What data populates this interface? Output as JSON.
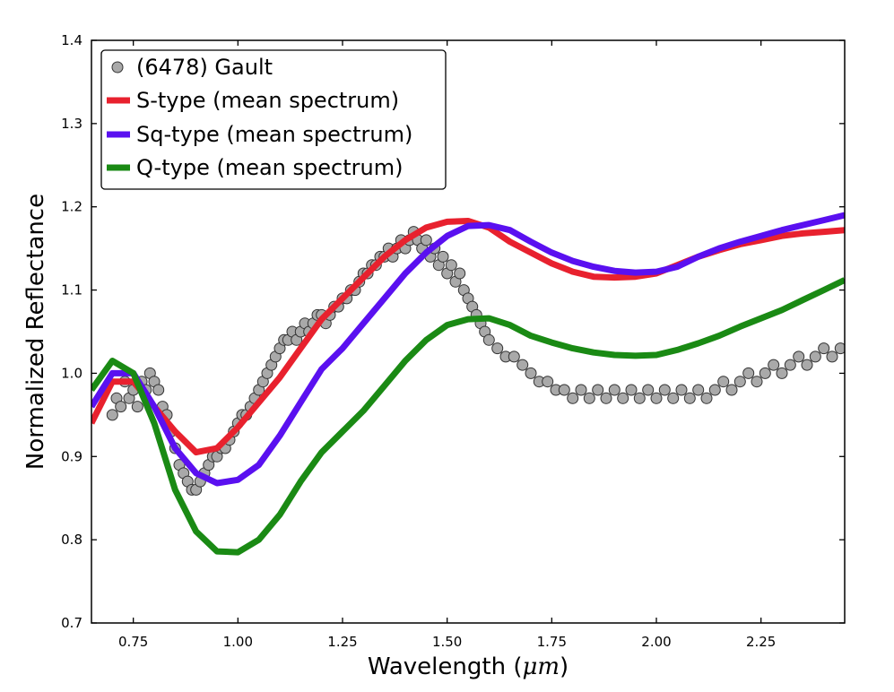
{
  "chart_data": {
    "type": "line",
    "title": "",
    "xlabel_prefix": "Wavelength (",
    "xlabel_unit": "μm",
    "xlabel_suffix": ")",
    "ylabel": "Normalized Reflectance",
    "xlim": [
      0.65,
      2.45
    ],
    "ylim": [
      0.7,
      1.4
    ],
    "x_ticks": [
      0.75,
      1.0,
      1.25,
      1.5,
      1.75,
      2.0,
      2.25
    ],
    "x_tick_labels": [
      "0.75",
      "1.00",
      "1.25",
      "1.50",
      "1.75",
      "2.00",
      "2.25"
    ],
    "y_ticks": [
      0.7,
      0.8,
      0.9,
      1.0,
      1.1,
      1.2,
      1.3,
      1.4
    ],
    "y_tick_labels": [
      "0.7",
      "0.8",
      "0.9",
      "1.0",
      "1.1",
      "1.2",
      "1.3",
      "1.4"
    ],
    "grid": false,
    "legend_position": "top-left",
    "scatter": {
      "name": "(6478) Gault",
      "color": "#a9a9a9",
      "edge_color": "#333333",
      "points": [
        [
          0.7,
          0.95
        ],
        [
          0.71,
          0.97
        ],
        [
          0.72,
          0.96
        ],
        [
          0.73,
          0.99
        ],
        [
          0.74,
          0.97
        ],
        [
          0.75,
          0.98
        ],
        [
          0.76,
          0.96
        ],
        [
          0.77,
          0.99
        ],
        [
          0.78,
          0.98
        ],
        [
          0.79,
          1.0
        ],
        [
          0.8,
          0.99
        ],
        [
          0.81,
          0.98
        ],
        [
          0.82,
          0.96
        ],
        [
          0.83,
          0.95
        ],
        [
          0.84,
          0.93
        ],
        [
          0.85,
          0.91
        ],
        [
          0.86,
          0.89
        ],
        [
          0.87,
          0.88
        ],
        [
          0.88,
          0.87
        ],
        [
          0.89,
          0.86
        ],
        [
          0.9,
          0.86
        ],
        [
          0.91,
          0.87
        ],
        [
          0.92,
          0.88
        ],
        [
          0.93,
          0.89
        ],
        [
          0.94,
          0.9
        ],
        [
          0.95,
          0.9
        ],
        [
          0.96,
          0.91
        ],
        [
          0.97,
          0.91
        ],
        [
          0.98,
          0.92
        ],
        [
          0.99,
          0.93
        ],
        [
          1.0,
          0.94
        ],
        [
          1.01,
          0.95
        ],
        [
          1.02,
          0.95
        ],
        [
          1.03,
          0.96
        ],
        [
          1.04,
          0.97
        ],
        [
          1.05,
          0.98
        ],
        [
          1.06,
          0.99
        ],
        [
          1.07,
          1.0
        ],
        [
          1.08,
          1.01
        ],
        [
          1.09,
          1.02
        ],
        [
          1.1,
          1.03
        ],
        [
          1.11,
          1.04
        ],
        [
          1.12,
          1.04
        ],
        [
          1.13,
          1.05
        ],
        [
          1.14,
          1.04
        ],
        [
          1.15,
          1.05
        ],
        [
          1.16,
          1.06
        ],
        [
          1.17,
          1.05
        ],
        [
          1.18,
          1.06
        ],
        [
          1.19,
          1.07
        ],
        [
          1.2,
          1.07
        ],
        [
          1.21,
          1.06
        ],
        [
          1.22,
          1.07
        ],
        [
          1.23,
          1.08
        ],
        [
          1.24,
          1.08
        ],
        [
          1.25,
          1.09
        ],
        [
          1.26,
          1.09
        ],
        [
          1.27,
          1.1
        ],
        [
          1.28,
          1.1
        ],
        [
          1.29,
          1.11
        ],
        [
          1.3,
          1.12
        ],
        [
          1.31,
          1.12
        ],
        [
          1.32,
          1.13
        ],
        [
          1.33,
          1.13
        ],
        [
          1.34,
          1.14
        ],
        [
          1.35,
          1.14
        ],
        [
          1.36,
          1.15
        ],
        [
          1.37,
          1.14
        ],
        [
          1.38,
          1.15
        ],
        [
          1.39,
          1.16
        ],
        [
          1.4,
          1.15
        ],
        [
          1.41,
          1.16
        ],
        [
          1.42,
          1.17
        ],
        [
          1.43,
          1.16
        ],
        [
          1.44,
          1.15
        ],
        [
          1.45,
          1.16
        ],
        [
          1.46,
          1.14
        ],
        [
          1.47,
          1.15
        ],
        [
          1.48,
          1.13
        ],
        [
          1.49,
          1.14
        ],
        [
          1.5,
          1.12
        ],
        [
          1.51,
          1.13
        ],
        [
          1.52,
          1.11
        ],
        [
          1.53,
          1.12
        ],
        [
          1.54,
          1.1
        ],
        [
          1.55,
          1.09
        ],
        [
          1.56,
          1.08
        ],
        [
          1.57,
          1.07
        ],
        [
          1.58,
          1.06
        ],
        [
          1.59,
          1.05
        ],
        [
          1.6,
          1.04
        ],
        [
          1.62,
          1.03
        ],
        [
          1.64,
          1.02
        ],
        [
          1.66,
          1.02
        ],
        [
          1.68,
          1.01
        ],
        [
          1.7,
          1.0
        ],
        [
          1.72,
          0.99
        ],
        [
          1.74,
          0.99
        ],
        [
          1.76,
          0.98
        ],
        [
          1.78,
          0.98
        ],
        [
          1.8,
          0.97
        ],
        [
          1.82,
          0.98
        ],
        [
          1.84,
          0.97
        ],
        [
          1.86,
          0.98
        ],
        [
          1.88,
          0.97
        ],
        [
          1.9,
          0.98
        ],
        [
          1.92,
          0.97
        ],
        [
          1.94,
          0.98
        ],
        [
          1.96,
          0.97
        ],
        [
          1.98,
          0.98
        ],
        [
          2.0,
          0.97
        ],
        [
          2.02,
          0.98
        ],
        [
          2.04,
          0.97
        ],
        [
          2.06,
          0.98
        ],
        [
          2.08,
          0.97
        ],
        [
          2.1,
          0.98
        ],
        [
          2.12,
          0.97
        ],
        [
          2.14,
          0.98
        ],
        [
          2.16,
          0.99
        ],
        [
          2.18,
          0.98
        ],
        [
          2.2,
          0.99
        ],
        [
          2.22,
          1.0
        ],
        [
          2.24,
          0.99
        ],
        [
          2.26,
          1.0
        ],
        [
          2.28,
          1.01
        ],
        [
          2.3,
          1.0
        ],
        [
          2.32,
          1.01
        ],
        [
          2.34,
          1.02
        ],
        [
          2.36,
          1.01
        ],
        [
          2.38,
          1.02
        ],
        [
          2.4,
          1.03
        ],
        [
          2.42,
          1.02
        ],
        [
          2.44,
          1.03
        ]
      ]
    },
    "series": [
      {
        "name": "S-type (mean spectrum)",
        "color": "#e8212e",
        "x": [
          0.65,
          0.7,
          0.75,
          0.8,
          0.85,
          0.9,
          0.95,
          1.0,
          1.05,
          1.1,
          1.15,
          1.2,
          1.25,
          1.3,
          1.35,
          1.4,
          1.45,
          1.5,
          1.55,
          1.6,
          1.65,
          1.7,
          1.75,
          1.8,
          1.85,
          1.9,
          1.95,
          2.0,
          2.05,
          2.1,
          2.15,
          2.2,
          2.25,
          2.3,
          2.35,
          2.4,
          2.45
        ],
        "y": [
          0.94,
          0.99,
          0.99,
          0.96,
          0.93,
          0.905,
          0.91,
          0.935,
          0.965,
          0.995,
          1.03,
          1.065,
          1.09,
          1.115,
          1.14,
          1.16,
          1.175,
          1.182,
          1.183,
          1.175,
          1.158,
          1.145,
          1.132,
          1.122,
          1.116,
          1.115,
          1.116,
          1.12,
          1.13,
          1.14,
          1.148,
          1.155,
          1.16,
          1.165,
          1.168,
          1.17,
          1.172
        ]
      },
      {
        "name": "Sq-type (mean spectrum)",
        "color": "#5a10f0",
        "x": [
          0.65,
          0.7,
          0.75,
          0.8,
          0.85,
          0.9,
          0.95,
          1.0,
          1.05,
          1.1,
          1.15,
          1.2,
          1.25,
          1.3,
          1.35,
          1.4,
          1.45,
          1.5,
          1.55,
          1.6,
          1.65,
          1.7,
          1.75,
          1.8,
          1.85,
          1.9,
          1.95,
          2.0,
          2.05,
          2.1,
          2.15,
          2.2,
          2.25,
          2.3,
          2.35,
          2.4,
          2.45
        ],
        "y": [
          0.96,
          1.0,
          1.0,
          0.96,
          0.91,
          0.88,
          0.868,
          0.872,
          0.89,
          0.925,
          0.965,
          1.005,
          1.03,
          1.06,
          1.09,
          1.12,
          1.145,
          1.165,
          1.177,
          1.178,
          1.172,
          1.158,
          1.145,
          1.135,
          1.128,
          1.123,
          1.121,
          1.122,
          1.128,
          1.14,
          1.15,
          1.158,
          1.165,
          1.172,
          1.178,
          1.184,
          1.19
        ]
      },
      {
        "name": "Q-type (mean spectrum)",
        "color": "#1a8a14",
        "x": [
          0.65,
          0.7,
          0.75,
          0.8,
          0.85,
          0.9,
          0.95,
          1.0,
          1.05,
          1.1,
          1.15,
          1.2,
          1.25,
          1.3,
          1.35,
          1.4,
          1.45,
          1.5,
          1.55,
          1.6,
          1.65,
          1.7,
          1.75,
          1.8,
          1.85,
          1.9,
          1.95,
          2.0,
          2.05,
          2.1,
          2.15,
          2.2,
          2.25,
          2.3,
          2.35,
          2.4,
          2.45
        ],
        "y": [
          0.98,
          1.015,
          1.0,
          0.94,
          0.86,
          0.81,
          0.786,
          0.785,
          0.8,
          0.83,
          0.87,
          0.905,
          0.93,
          0.955,
          0.985,
          1.015,
          1.04,
          1.058,
          1.065,
          1.066,
          1.058,
          1.045,
          1.037,
          1.03,
          1.025,
          1.022,
          1.021,
          1.022,
          1.028,
          1.036,
          1.045,
          1.056,
          1.066,
          1.076,
          1.088,
          1.1,
          1.112
        ]
      }
    ]
  }
}
